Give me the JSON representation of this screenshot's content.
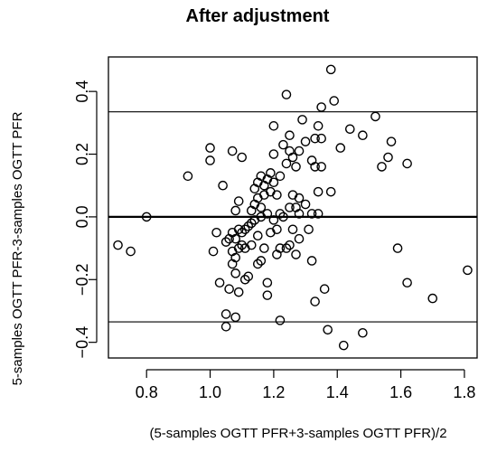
{
  "chart_data": {
    "type": "scatter",
    "title": "After adjustment",
    "xlabel": "(5-samples OGTT PFR+3-samples OGTT PFR)/2",
    "ylabel": "5-samples OGTT PFR-3-samples OGTT PFR",
    "xlim": [
      0.68,
      1.84
    ],
    "ylim": [
      -0.45,
      0.51
    ],
    "xticks": [
      0.8,
      1.0,
      1.2,
      1.4,
      1.6,
      1.8
    ],
    "xtick_labels": [
      "0.8",
      "1.0",
      "1.2",
      "1.4",
      "1.6",
      "1.8"
    ],
    "yticks": [
      -0.4,
      -0.2,
      0.0,
      0.2,
      0.4
    ],
    "ytick_labels": [
      "−0.4",
      "−0.2",
      "0.0",
      "0.2",
      "0.4"
    ],
    "grid": false,
    "reference_lines": [
      {
        "y": 0.0,
        "style": "bold"
      },
      {
        "y": 0.335,
        "style": "thin"
      },
      {
        "y": -0.335,
        "style": "thin"
      }
    ],
    "points": [
      [
        0.71,
        -0.09
      ],
      [
        0.75,
        -0.11
      ],
      [
        0.8,
        0.0
      ],
      [
        0.93,
        0.13
      ],
      [
        1.0,
        0.22
      ],
      [
        1.0,
        0.18
      ],
      [
        1.01,
        -0.11
      ],
      [
        1.02,
        -0.05
      ],
      [
        1.03,
        -0.21
      ],
      [
        1.04,
        0.1
      ],
      [
        1.05,
        -0.35
      ],
      [
        1.05,
        -0.31
      ],
      [
        1.05,
        -0.08
      ],
      [
        1.06,
        -0.07
      ],
      [
        1.06,
        -0.23
      ],
      [
        1.07,
        -0.11
      ],
      [
        1.07,
        -0.15
      ],
      [
        1.07,
        -0.05
      ],
      [
        1.07,
        0.21
      ],
      [
        1.08,
        -0.18
      ],
      [
        1.08,
        -0.13
      ],
      [
        1.08,
        -0.07
      ],
      [
        1.08,
        -0.32
      ],
      [
        1.08,
        0.02
      ],
      [
        1.09,
        -0.1
      ],
      [
        1.09,
        -0.04
      ],
      [
        1.09,
        0.05
      ],
      [
        1.09,
        -0.24
      ],
      [
        1.1,
        -0.09
      ],
      [
        1.1,
        -0.05
      ],
      [
        1.1,
        0.19
      ],
      [
        1.11,
        -0.04
      ],
      [
        1.11,
        -0.1
      ],
      [
        1.11,
        -0.2
      ],
      [
        1.12,
        -0.03
      ],
      [
        1.12,
        -0.19
      ],
      [
        1.13,
        -0.02
      ],
      [
        1.13,
        0.02
      ],
      [
        1.13,
        -0.09
      ],
      [
        1.14,
        0.04
      ],
      [
        1.14,
        0.09
      ],
      [
        1.14,
        -0.01
      ],
      [
        1.15,
        0.06
      ],
      [
        1.15,
        -0.06
      ],
      [
        1.15,
        0.11
      ],
      [
        1.15,
        -0.15
      ],
      [
        1.16,
        -0.14
      ],
      [
        1.16,
        0.03
      ],
      [
        1.16,
        0.13
      ],
      [
        1.16,
        0.0
      ],
      [
        1.17,
        0.07
      ],
      [
        1.17,
        -0.1
      ],
      [
        1.17,
        0.1
      ],
      [
        1.18,
        0.01
      ],
      [
        1.18,
        0.12
      ],
      [
        1.18,
        -0.21
      ],
      [
        1.18,
        -0.25
      ],
      [
        1.19,
        -0.05
      ],
      [
        1.19,
        0.08
      ],
      [
        1.19,
        0.14
      ],
      [
        1.2,
        0.11
      ],
      [
        1.2,
        0.2
      ],
      [
        1.2,
        0.29
      ],
      [
        1.2,
        -0.01
      ],
      [
        1.21,
        -0.12
      ],
      [
        1.21,
        -0.04
      ],
      [
        1.21,
        0.07
      ],
      [
        1.22,
        0.01
      ],
      [
        1.22,
        -0.1
      ],
      [
        1.22,
        -0.33
      ],
      [
        1.22,
        0.13
      ],
      [
        1.23,
        0.0
      ],
      [
        1.23,
        0.23
      ],
      [
        1.24,
        0.17
      ],
      [
        1.24,
        -0.1
      ],
      [
        1.24,
        0.39
      ],
      [
        1.25,
        0.26
      ],
      [
        1.25,
        0.21
      ],
      [
        1.25,
        0.03
      ],
      [
        1.25,
        -0.09
      ],
      [
        1.26,
        0.07
      ],
      [
        1.26,
        -0.04
      ],
      [
        1.26,
        0.19
      ],
      [
        1.27,
        0.03
      ],
      [
        1.27,
        -0.12
      ],
      [
        1.27,
        0.16
      ],
      [
        1.28,
        0.06
      ],
      [
        1.28,
        0.01
      ],
      [
        1.28,
        -0.07
      ],
      [
        1.28,
        0.21
      ],
      [
        1.29,
        0.31
      ],
      [
        1.3,
        0.24
      ],
      [
        1.3,
        0.04
      ],
      [
        1.31,
        -0.04
      ],
      [
        1.32,
        0.18
      ],
      [
        1.32,
        0.01
      ],
      [
        1.32,
        -0.14
      ],
      [
        1.33,
        0.25
      ],
      [
        1.33,
        -0.27
      ],
      [
        1.33,
        0.16
      ],
      [
        1.34,
        0.29
      ],
      [
        1.34,
        0.08
      ],
      [
        1.34,
        0.01
      ],
      [
        1.35,
        0.35
      ],
      [
        1.35,
        0.25
      ],
      [
        1.35,
        0.16
      ],
      [
        1.36,
        -0.23
      ],
      [
        1.37,
        -0.36
      ],
      [
        1.38,
        0.08
      ],
      [
        1.38,
        0.47
      ],
      [
        1.39,
        0.37
      ],
      [
        1.41,
        0.22
      ],
      [
        1.42,
        -0.41
      ],
      [
        1.44,
        0.28
      ],
      [
        1.48,
        -0.37
      ],
      [
        1.48,
        0.26
      ],
      [
        1.52,
        0.32
      ],
      [
        1.54,
        0.16
      ],
      [
        1.56,
        0.19
      ],
      [
        1.57,
        0.24
      ],
      [
        1.59,
        -0.1
      ],
      [
        1.62,
        0.17
      ],
      [
        1.62,
        -0.21
      ],
      [
        1.7,
        -0.26
      ],
      [
        1.81,
        -0.17
      ]
    ]
  }
}
